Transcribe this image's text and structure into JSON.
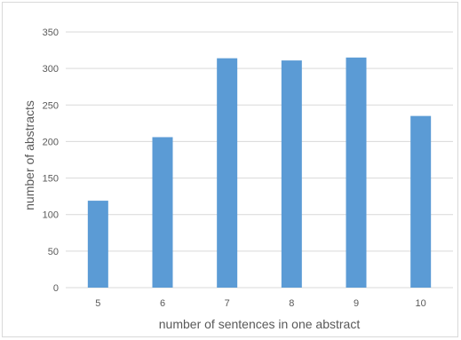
{
  "chart_data": {
    "type": "bar",
    "categories": [
      "5",
      "6",
      "7",
      "8",
      "9",
      "10"
    ],
    "values": [
      119,
      206,
      314,
      311,
      315,
      235
    ],
    "xlabel": "number of sentences in one abstract",
    "ylabel": "number of abstracts",
    "ylim": [
      0,
      350
    ],
    "yticks": [
      "0",
      "50",
      "100",
      "150",
      "200",
      "250",
      "300",
      "350"
    ],
    "grid": true,
    "bar_color": "#5b9bd5",
    "grid_color": "#d9d9d9"
  }
}
